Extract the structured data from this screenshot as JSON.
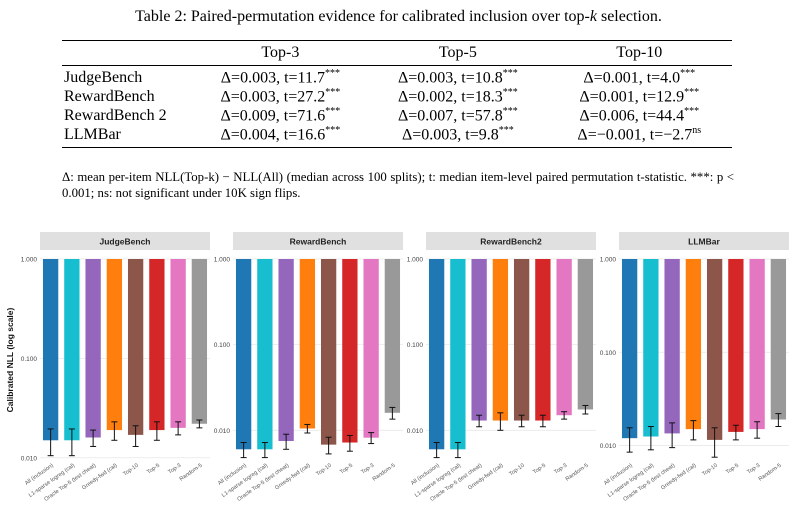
{
  "table": {
    "caption": "Table 2: Paired-permutation evidence for calibrated inclusion over top-k selection.",
    "columns": [
      "",
      "Top-3",
      "Top-5",
      "Top-10"
    ],
    "rows": [
      {
        "name": "JudgeBench",
        "cells": [
          {
            "text": "Δ=0.003, t=11.7",
            "sup": "***"
          },
          {
            "text": "Δ=0.003, t=10.8",
            "sup": "***"
          },
          {
            "text": "Δ=0.001, t=4.0",
            "sup": "***"
          }
        ]
      },
      {
        "name": "RewardBench",
        "cells": [
          {
            "text": "Δ=0.003, t=27.2",
            "sup": "***"
          },
          {
            "text": "Δ=0.002, t=18.3",
            "sup": "***"
          },
          {
            "text": "Δ=0.001, t=12.9",
            "sup": "***"
          }
        ]
      },
      {
        "name": "RewardBench 2",
        "cells": [
          {
            "text": "Δ=0.009, t=71.6",
            "sup": "***"
          },
          {
            "text": "Δ=0.007, t=57.8",
            "sup": "***"
          },
          {
            "text": "Δ=0.006, t=44.4",
            "sup": "***"
          }
        ]
      },
      {
        "name": "LLMBar",
        "cells": [
          {
            "text": "Δ=0.004, t=16.6",
            "sup": "***"
          },
          {
            "text": "Δ=0.003, t=9.8",
            "sup": "***"
          },
          {
            "text": "Δ=−0.001, t=−2.7",
            "sup": "ns"
          }
        ]
      }
    ],
    "note": "Δ: mean per-item NLL(Top-k) − NLL(All) (median across 100 splits); t: median item-level paired permutation t-statistic. ***: p < 0.001; ns: not significant under 10K sign flips."
  },
  "chart_data": {
    "type": "bar",
    "ylabel": "Calibrated NLL (log scale)",
    "yscale": "log",
    "categories": [
      "All (inclusion)",
      "L1-sparse logreg (cal)",
      "Oracle Top-5 (test cheat)",
      "Greedy-fwd (cal)",
      "Top-10",
      "Top-5",
      "Top-3",
      "Random-5"
    ],
    "colors": [
      "#1f77b4",
      "#17becf",
      "#9467bd",
      "#ff7f0e",
      "#8c564b",
      "#d62728",
      "#e377c2",
      "#999999"
    ],
    "panels": [
      {
        "title": "JudgeBench",
        "ylim": [
          0.0095,
          1.0
        ],
        "ticks": [
          {
            "v": 0.01,
            "label": "0.010"
          },
          {
            "v": 0.1,
            "label": "0.100"
          },
          {
            "v": 1.0,
            "label": "1.000"
          }
        ],
        "values": [
          0.015,
          0.015,
          0.016,
          0.019,
          0.017,
          0.019,
          0.02,
          0.022
        ],
        "errors": [
          0.0045,
          0.0045,
          0.003,
          0.004,
          0.004,
          0.004,
          0.003,
          0.002
        ]
      },
      {
        "title": "RewardBench",
        "ylim": [
          0.0045,
          1.0
        ],
        "ticks": [
          {
            "v": 0.01,
            "label": "0.010"
          },
          {
            "v": 0.1,
            "label": "0.100"
          },
          {
            "v": 1.0,
            "label": "1.000"
          }
        ],
        "values": [
          0.006,
          0.006,
          0.0075,
          0.0105,
          0.0068,
          0.0072,
          0.0082,
          0.016
        ],
        "errors": [
          0.0012,
          0.0012,
          0.0015,
          0.0012,
          0.0015,
          0.0015,
          0.0012,
          0.0025
        ]
      },
      {
        "title": "RewardBench2",
        "ylim": [
          0.0045,
          1.0
        ],
        "ticks": [
          {
            "v": 0.01,
            "label": "0.010"
          },
          {
            "v": 0.1,
            "label": "0.100"
          },
          {
            "v": 1.0,
            "label": "1.000"
          }
        ],
        "values": [
          0.006,
          0.006,
          0.013,
          0.013,
          0.013,
          0.013,
          0.015,
          0.0175
        ],
        "errors": [
          0.0012,
          0.0012,
          0.002,
          0.003,
          0.002,
          0.002,
          0.0015,
          0.002
        ]
      },
      {
        "title": "LLMBar",
        "ylim": [
          0.007,
          1.0
        ],
        "ticks": [
          {
            "v": 0.01,
            "label": "0.010"
          },
          {
            "v": 0.1,
            "label": "0.100"
          },
          {
            "v": 1.0,
            "label": "1.000"
          }
        ],
        "values": [
          0.012,
          0.0125,
          0.0135,
          0.015,
          0.0115,
          0.014,
          0.015,
          0.019
        ],
        "errors": [
          0.0035,
          0.0035,
          0.004,
          0.0035,
          0.004,
          0.0025,
          0.003,
          0.003
        ]
      }
    ]
  }
}
